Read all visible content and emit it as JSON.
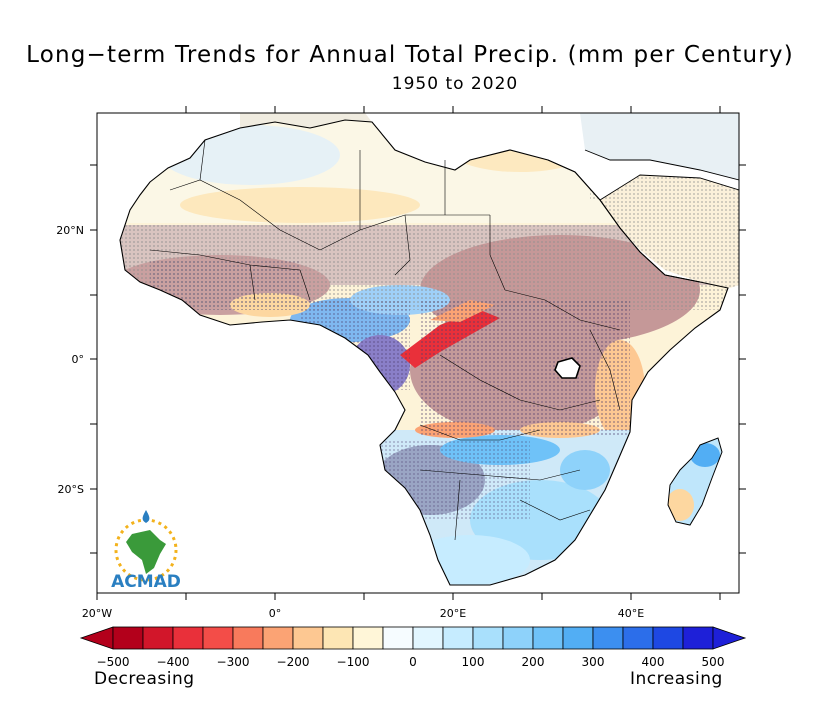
{
  "title": "Long−term Trends for Annual Total Precip. (mm per Century)",
  "subtitle": "1950 to 2020",
  "axes": {
    "lat_labels": [
      "20°N",
      "0°",
      "20°S"
    ],
    "lon_labels": [
      "20°W",
      "0°",
      "20°E",
      "40°E"
    ]
  },
  "colorbar": {
    "tick_labels": [
      "−500",
      "−400",
      "−300",
      "−200",
      "−100",
      "0",
      "100",
      "200",
      "300",
      "400",
      "500"
    ],
    "colors": [
      "#b3001b",
      "#d2162a",
      "#e9303a",
      "#f34d48",
      "#f87a5c",
      "#fba374",
      "#fdc892",
      "#fde6b4",
      "#fff6d8",
      "#f6fcff",
      "#e2f6ff",
      "#c6ecff",
      "#a9e0fc",
      "#8ed2fa",
      "#6fc2f8",
      "#52aef4",
      "#3c8ff0",
      "#2c6eea",
      "#1e48e3",
      "#1e20d8"
    ],
    "left_text": "Decreasing",
    "right_text": "Increasing"
  },
  "logo": {
    "text": "ACMAD"
  }
}
